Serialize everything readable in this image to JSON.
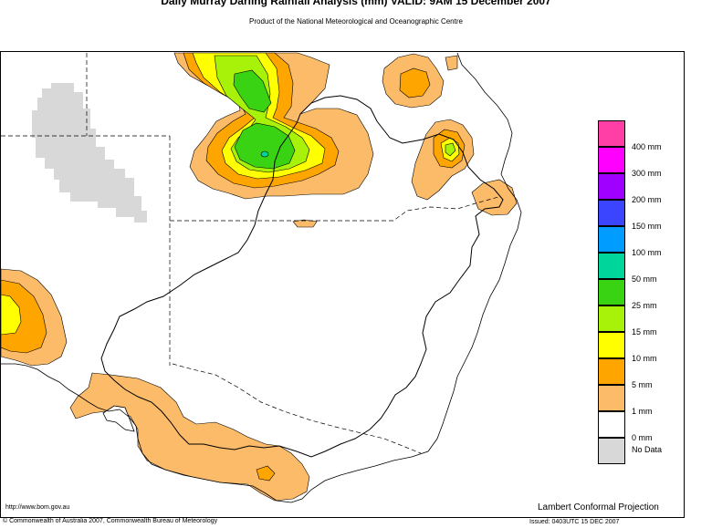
{
  "header": {
    "title": "Daily Murray Darling Rainfall Analysis (mm)  VALID: 9AM 15 December 2007",
    "subtitle": "Product of the National Meteorological and Oceanographic Centre"
  },
  "legend": {
    "items": [
      {
        "label": "400 mm",
        "color": "#ff3ea6"
      },
      {
        "label": "300 mm",
        "color": "#ff00ff"
      },
      {
        "label": "200 mm",
        "color": "#a000ff"
      },
      {
        "label": "150 mm",
        "color": "#3b45ff"
      },
      {
        "label": "100 mm",
        "color": "#009cff"
      },
      {
        "label": "50 mm",
        "color": "#00d69c"
      },
      {
        "label": "25 mm",
        "color": "#3ad314"
      },
      {
        "label": "15 mm",
        "color": "#a8f20a"
      },
      {
        "label": "10 mm",
        "color": "#ffff00"
      },
      {
        "label": "5 mm",
        "color": "#ffa500"
      },
      {
        "label": "1 mm",
        "color": "#fbbb69"
      },
      {
        "label": "0 mm",
        "color": "#ffffff"
      },
      {
        "label": "No Data",
        "color": "#d8d8d8"
      }
    ]
  },
  "footer": {
    "url": "http://www.bom.gov.au",
    "projection": "Lambert Conformal Projection",
    "copyright": "© Commonwealth of Australia 2007, Commonwealth Bureau of Meteorology",
    "issued": "Issued: 0403UTC 15 DEC 2007"
  }
}
